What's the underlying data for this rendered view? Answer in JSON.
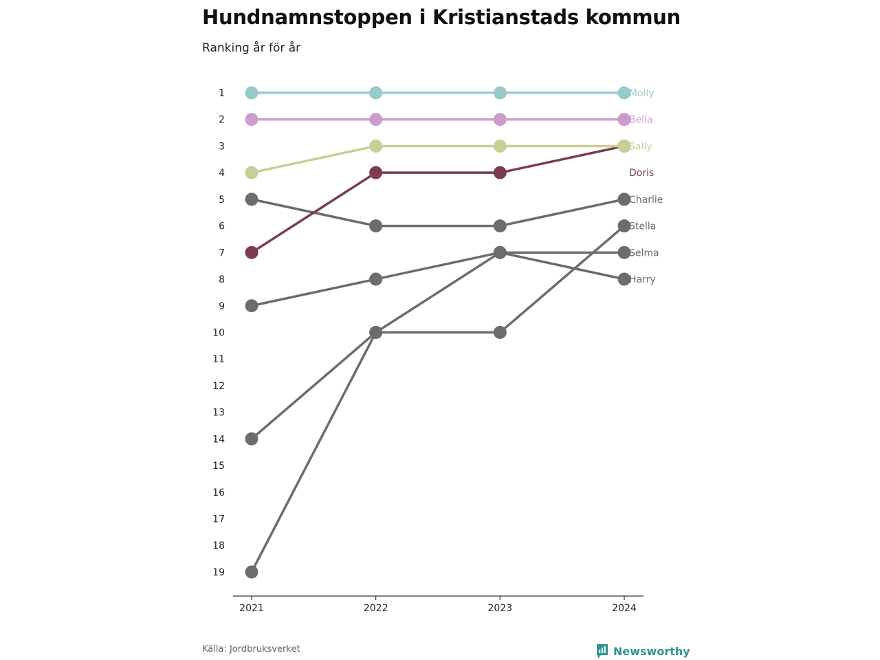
{
  "header": {
    "title": "Hundnamnstoppen i Kristianstads kommun",
    "subtitle": "Ranking år för år"
  },
  "footer": {
    "source": "Källa: Jordbruksverket",
    "brand": "Newsworthy",
    "brand_color": "#2f9490"
  },
  "chart_data": {
    "type": "line",
    "title": "Hundnamnstoppen i Kristianstads kommun",
    "subtitle": "Ranking år för år",
    "x": [
      2021,
      2022,
      2023,
      2024
    ],
    "x_tick_labels": [
      "2021",
      "2022",
      "2023",
      "2024"
    ],
    "y_tick_labels": [
      "1",
      "2",
      "3",
      "4",
      "5",
      "6",
      "7",
      "8",
      "9",
      "10",
      "11",
      "12",
      "13",
      "14",
      "15",
      "16",
      "17",
      "18",
      "19"
    ],
    "ylim": [
      1,
      19
    ],
    "y_reversed": true,
    "grid": false,
    "legend": "direct labels at right end",
    "series": [
      {
        "name": "Harry",
        "values": [
          9,
          8,
          7,
          8
        ],
        "color": "#6b6b70"
      },
      {
        "name": "Selma",
        "values": [
          19,
          10,
          7,
          7
        ],
        "color": "#6b6b70"
      },
      {
        "name": "Stella",
        "values": [
          14,
          10,
          10,
          6
        ],
        "color": "#6b6b70"
      },
      {
        "name": "Charlie",
        "values": [
          5,
          6,
          6,
          5
        ],
        "color": "#6b6b70"
      },
      {
        "name": "Doris",
        "values": [
          7,
          4,
          4,
          3
        ],
        "color": "#7d3b50"
      },
      {
        "name": "Sally",
        "values": [
          4,
          3,
          3,
          3
        ],
        "color": "#cbcd97"
      },
      {
        "name": "Bella",
        "values": [
          2,
          2,
          2,
          2
        ],
        "color": "#cd9ccf"
      },
      {
        "name": "Molly",
        "values": [
          1,
          1,
          1,
          1
        ],
        "color": "#99cacb"
      }
    ],
    "end_labels": [
      {
        "name": "Molly",
        "rank_position": 1,
        "color": "#99cacb"
      },
      {
        "name": "Bella",
        "rank_position": 2,
        "color": "#cd9ccf"
      },
      {
        "name": "Sally",
        "rank_position": 3,
        "color": "#cbcd97"
      },
      {
        "name": "Doris",
        "rank_position": 4,
        "color": "#7d3b50"
      },
      {
        "name": "Charlie",
        "rank_position": 5,
        "color": "#6b6b70"
      },
      {
        "name": "Stella",
        "rank_position": 6,
        "color": "#6b6b70"
      },
      {
        "name": "Selma",
        "rank_position": 7,
        "color": "#6b6b70"
      },
      {
        "name": "Harry",
        "rank_position": 8,
        "color": "#6b6b70"
      }
    ]
  }
}
